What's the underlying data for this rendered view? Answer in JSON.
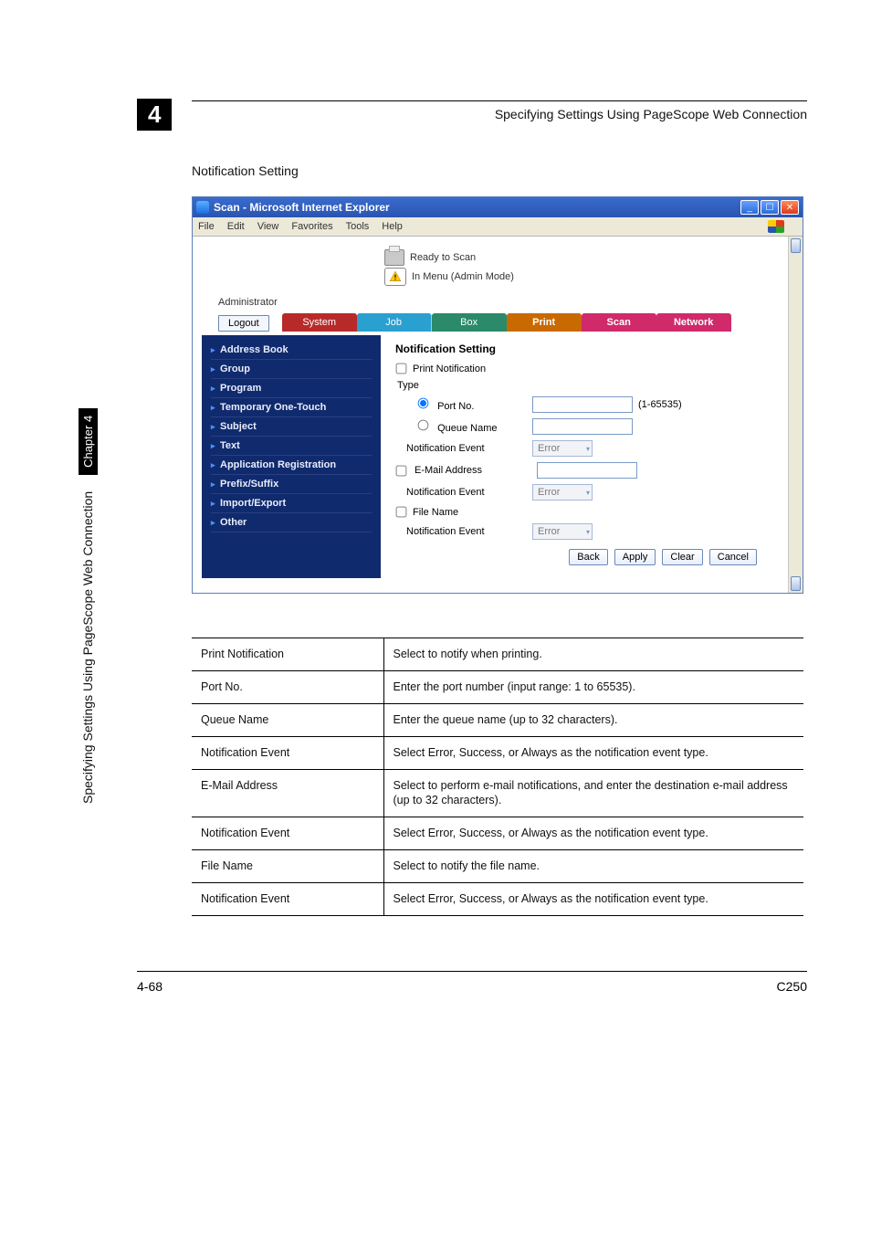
{
  "page": {
    "chapter_number": "4",
    "header_text": "Specifying Settings Using PageScope Web Connection",
    "section_title": "Notification Setting",
    "side_text": "Specifying Settings Using PageScope Web Connection",
    "side_chapter": "Chapter 4",
    "footer_left": "4-68",
    "footer_right": "C250"
  },
  "window": {
    "title": "Scan - Microsoft Internet Explorer",
    "menu": {
      "file": "File",
      "edit": "Edit",
      "view": "View",
      "favorites": "Favorites",
      "tools": "Tools",
      "help": "Help"
    },
    "status_line1": "Ready to Scan",
    "status_line2": "In Menu (Admin Mode)",
    "admin_label": "Administrator",
    "logout": "Logout",
    "tabs": {
      "system": "System",
      "job": "Job",
      "box": "Box",
      "print": "Print",
      "scan": "Scan",
      "network": "Network"
    },
    "sidenav": [
      "Address Book",
      "Group",
      "Program",
      "Temporary One-Touch",
      "Subject",
      "Text",
      "Application Registration",
      "Prefix/Suffix",
      "Import/Export",
      "Other"
    ],
    "panel": {
      "title": "Notification Setting",
      "print_notification": "Print Notification",
      "type": "Type",
      "port_no": "Port No.",
      "port_range": "(1-65535)",
      "queue_name": "Queue Name",
      "notif_event": "Notification Event",
      "email_addr": "E-Mail Address",
      "file_name": "File Name",
      "select_val": "Error",
      "buttons": {
        "back": "Back",
        "apply": "Apply",
        "clear": "Clear",
        "cancel": "Cancel"
      }
    }
  },
  "desc_table": {
    "rows": [
      {
        "name": "Print Notification",
        "desc": "Select to notify when printing."
      },
      {
        "name": "Port No.",
        "desc": "Enter the port number (input range: 1 to 65535)."
      },
      {
        "name": "Queue Name",
        "desc": "Enter the queue name (up to 32 characters)."
      },
      {
        "name": "Notification Event",
        "desc": "Select Error, Success, or Always as the notification event type."
      },
      {
        "name": "E-Mail Address",
        "desc": "Select to perform e-mail notifications, and enter the destination e-mail address (up to 32 characters)."
      },
      {
        "name": "Notification Event",
        "desc": "Select Error, Success, or Always as the notification event type."
      },
      {
        "name": "File Name",
        "desc": "Select to notify the file name."
      },
      {
        "name": "Notification Event",
        "desc": "Select Error, Success, or Always as the notification event type."
      }
    ]
  },
  "colors": {
    "titlebar": "#2a54b0",
    "close": "#e03a1a",
    "sidenav_bg": "#102a6e"
  }
}
